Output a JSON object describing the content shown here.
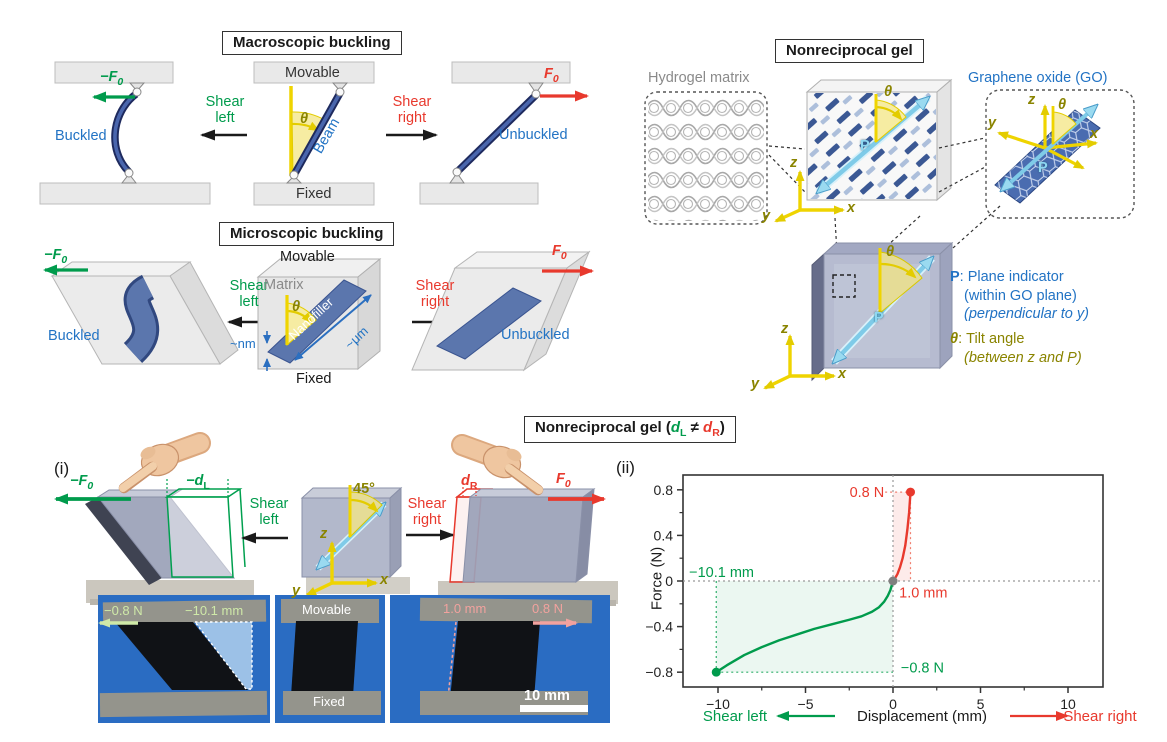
{
  "common": {
    "shear": "Shear",
    "left": "left",
    "right": "right",
    "movable": "Movable",
    "fixed": "Fixed",
    "buckled": "Buckled",
    "unbuckled": "Unbuckled",
    "neg_f": "−F",
    "f": "F",
    "sub_zero": "0",
    "theta": "θ"
  },
  "macroscopic": {
    "title": "Macroscopic buckling",
    "beam": "Beam"
  },
  "microscopic": {
    "title": "Microscopic buckling",
    "matrix": "Matrix",
    "nanofiller": "Nanofiller",
    "um": "~μm",
    "nm": "~nm"
  },
  "gel": {
    "title": "Nonreciprocal gel",
    "hydrogel": "Hydrogel matrix",
    "go": "Graphene oxide (GO)",
    "p": "P",
    "axis_z": "z",
    "axis_y": "y",
    "axis_x": "x",
    "legend_p_term": "P",
    "legend_p_text": ": Plane indicator",
    "legend_p_line2": "(within GO plane)",
    "legend_p_line3": "(perpendicular to y)",
    "legend_t_term": "θ",
    "legend_t_text": ": Tilt angle",
    "legend_t_line2": "(between z and P)"
  },
  "bottom": {
    "title_prefix": "Nonreciprocal gel (",
    "d": "d",
    "sub_l": "L",
    "neq": " ≠ ",
    "sub_r": "R",
    "title_suffix": ")",
    "panel_i": "(i)",
    "panel_ii": "(ii)",
    "neg_d": "−d",
    "angle_45": "45°",
    "photo_left": {
      "force": "−0.8 N",
      "disp": "−10.1 mm"
    },
    "photo_center": {
      "top": "Movable",
      "bottom": "Fixed"
    },
    "photo_right": {
      "disp": "1.0 mm",
      "force": "0.8 N",
      "scale": "10 mm"
    }
  },
  "colors": {
    "green": "#009B4C",
    "red": "#E8392D",
    "blue": "#2273C4",
    "navy": "#3A5490",
    "olive": "#8A8400",
    "cyan": "#7FCBE8",
    "yellow": "#EFD400",
    "photo_bg": "#2A6CC2",
    "pale_green": "#CFE9A8",
    "pink": "#F2A29E",
    "gray_label": "#8A8A8A"
  },
  "chart_data": {
    "type": "line",
    "xlabel": "Displacement (mm)",
    "xlabel_left": "Shear left",
    "xlabel_right": "Shear right",
    "ylabel": "Force (N)",
    "xlim": [
      -12,
      12
    ],
    "ylim": [
      -0.93,
      0.93
    ],
    "xticks": [
      -10,
      -5,
      0,
      5,
      10
    ],
    "xminor": [
      -7.5,
      -2.5,
      2.5,
      7.5
    ],
    "yticks": [
      0.8,
      0.4,
      0,
      -0.4,
      -0.8
    ],
    "yminor": [
      0.6,
      0.2,
      -0.2,
      -0.6
    ],
    "grid": "off",
    "series": [
      {
        "name": "Shear left",
        "color": "#009B4C",
        "x": [
          0,
          -0.15,
          -0.3,
          -0.5,
          -0.8,
          -1.2,
          -1.8,
          -2.5,
          -3.5,
          -4.5,
          -5.5,
          -6.5,
          -7.5,
          -8.5,
          -9.5,
          -10.1
        ],
        "y": [
          0,
          -0.08,
          -0.13,
          -0.18,
          -0.23,
          -0.27,
          -0.31,
          -0.34,
          -0.38,
          -0.42,
          -0.47,
          -0.52,
          -0.58,
          -0.65,
          -0.74,
          -0.8
        ],
        "endpoint": [
          -10.1,
          -0.8
        ]
      },
      {
        "name": "Shear right",
        "color": "#E8392D",
        "x": [
          0,
          0.1,
          0.25,
          0.4,
          0.55,
          0.7,
          0.82,
          0.92,
          1.0
        ],
        "y": [
          0,
          0.02,
          0.06,
          0.12,
          0.2,
          0.31,
          0.45,
          0.6,
          0.78
        ],
        "endpoint": [
          1.0,
          0.78
        ]
      }
    ],
    "regions": [
      {
        "x0": -10.1,
        "y0": -0.8,
        "x1": 0,
        "y1": 0,
        "color": "#009B4C",
        "opacity": 0.08
      },
      {
        "x0": 0,
        "y0": 0,
        "x1": 1.0,
        "y1": 0.78,
        "color": "#E8392D",
        "opacity": 0.1
      }
    ],
    "guides": [
      {
        "x1": -12,
        "y1": 0,
        "x2": 12,
        "y2": 0,
        "color": "#999999"
      },
      {
        "x1": 0,
        "y1": -0.93,
        "x2": 0,
        "y2": 0.93,
        "color": "#999999"
      },
      {
        "x1": -10.1,
        "y1": 0,
        "x2": -10.1,
        "y2": -0.8,
        "color": "#2FAE6A"
      },
      {
        "x1": -10.1,
        "y1": -0.8,
        "x2": 0,
        "y2": -0.8,
        "color": "#2FAE6A"
      },
      {
        "x1": -0.45,
        "y1": 0.78,
        "x2": 1.0,
        "y2": 0.78,
        "color": "#F08070"
      },
      {
        "x1": 1.0,
        "y1": 0.78,
        "x2": 1.0,
        "y2": 0,
        "color": "#F08070"
      }
    ],
    "annotations": [
      {
        "text": "0.8 N",
        "x": -0.5,
        "y": 0.78,
        "color": "#E8392D",
        "anchor": "end"
      },
      {
        "text": "1.0 mm",
        "x": 0.35,
        "y": -0.1,
        "color": "#E8392D",
        "anchor": "start"
      },
      {
        "text": "−10.1 mm",
        "x": -11.65,
        "y": 0.08,
        "color": "#009B4C",
        "anchor": "start"
      },
      {
        "text": "−0.8 N",
        "x": 0.45,
        "y": -0.76,
        "color": "#009B4C",
        "anchor": "start"
      }
    ],
    "origin_dot_color": "#808080"
  }
}
